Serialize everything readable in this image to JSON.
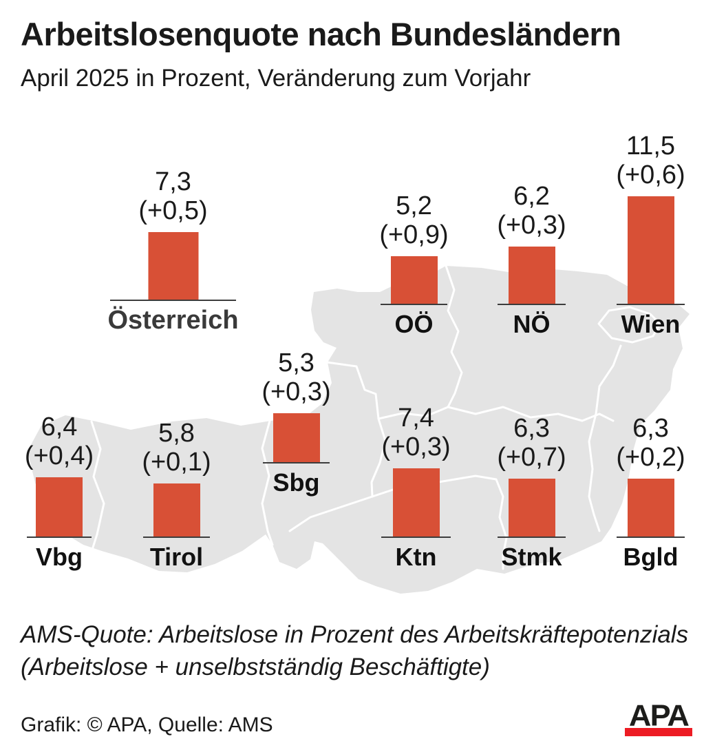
{
  "header": {
    "title": "Arbeitslosenquote nach Bundesländern",
    "subtitle": "April 2025 in Prozent, Veränderung zum Vorjahr"
  },
  "stations": [
    {
      "id": "oesterreich",
      "label": "Österreich",
      "value": "7,3",
      "change": "(+0,5)"
    },
    {
      "id": "ooe",
      "label": "OÖ",
      "value": "5,2",
      "change": "(+0,9)"
    },
    {
      "id": "noe",
      "label": "NÖ",
      "value": "6,2",
      "change": "(+0,3)"
    },
    {
      "id": "wien",
      "label": "Wien",
      "value": "11,5",
      "change": "(+0,6)"
    },
    {
      "id": "sbg",
      "label": "Sbg",
      "value": "5,3",
      "change": "(+0,3)"
    },
    {
      "id": "vbg",
      "label": "Vbg",
      "value": "6,4",
      "change": "(+0,4)"
    },
    {
      "id": "tirol",
      "label": "Tirol",
      "value": "5,8",
      "change": "(+0,1)"
    },
    {
      "id": "ktn",
      "label": "Ktn",
      "value": "7,4",
      "change": "(+0,3)"
    },
    {
      "id": "stmk",
      "label": "Stmk",
      "value": "6,3",
      "change": "(+0,7)"
    },
    {
      "id": "bgld",
      "label": "Bgld",
      "value": "6,3",
      "change": "(+0,2)"
    }
  ],
  "chart_data": {
    "type": "bar",
    "title": "Arbeitslosenquote nach Bundesländern",
    "subtitle": "April 2025 in Prozent, Veränderung zum Vorjahr",
    "unit": "Prozent (AMS-Quote), April 2025",
    "categories": [
      "Österreich",
      "OÖ",
      "NÖ",
      "Wien",
      "Sbg",
      "Vbg",
      "Tirol",
      "Ktn",
      "Stmk",
      "Bgld"
    ],
    "values": [
      7.3,
      5.2,
      6.2,
      11.5,
      5.3,
      6.4,
      5.8,
      7.4,
      6.3,
      6.3
    ],
    "change_vs_prev_year": [
      0.5,
      0.9,
      0.3,
      0.6,
      0.3,
      0.4,
      0.1,
      0.3,
      0.7,
      0.2
    ],
    "bar_color": "#D85036",
    "map_color": "#E4E4E4",
    "legend_position": "none",
    "grid": false
  },
  "footnote": {
    "line1": "AMS-Quote: Arbeitslose in Prozent des Arbeitskräftepotenzials",
    "line2": "(Arbeitslose + unselbstständig Beschäftigte)"
  },
  "credit": "Grafik: © APA, Quelle: AMS",
  "logo": {
    "text": "APA",
    "bar_color": "#ED1C24"
  }
}
